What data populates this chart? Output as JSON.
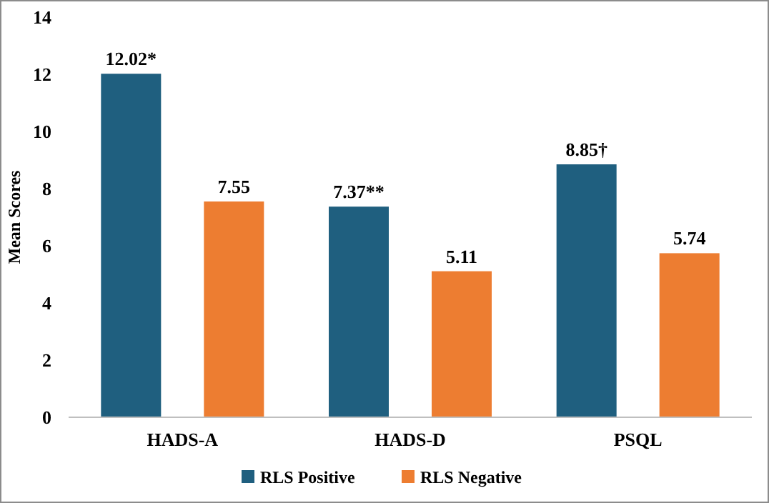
{
  "chart_data": {
    "type": "bar",
    "ylabel": "Mean Scores",
    "categories": [
      "HADS-A",
      "HADS-D",
      "PSQL"
    ],
    "series": [
      {
        "name": "RLS Positive",
        "color": "#1f5f7f",
        "values": [
          12.02,
          7.37,
          8.85
        ],
        "value_labels": [
          "12.02*",
          "7.37**",
          "8.85†"
        ]
      },
      {
        "name": "RLS Negative",
        "color": "#ed7d31",
        "values": [
          7.55,
          5.11,
          5.74
        ],
        "value_labels": [
          "7.55",
          "5.11",
          "5.74"
        ]
      }
    ],
    "ylim": [
      0,
      14
    ],
    "yticks": [
      0,
      2,
      4,
      6,
      8,
      10,
      12,
      14
    ],
    "grid": false,
    "legend": "bottom"
  }
}
